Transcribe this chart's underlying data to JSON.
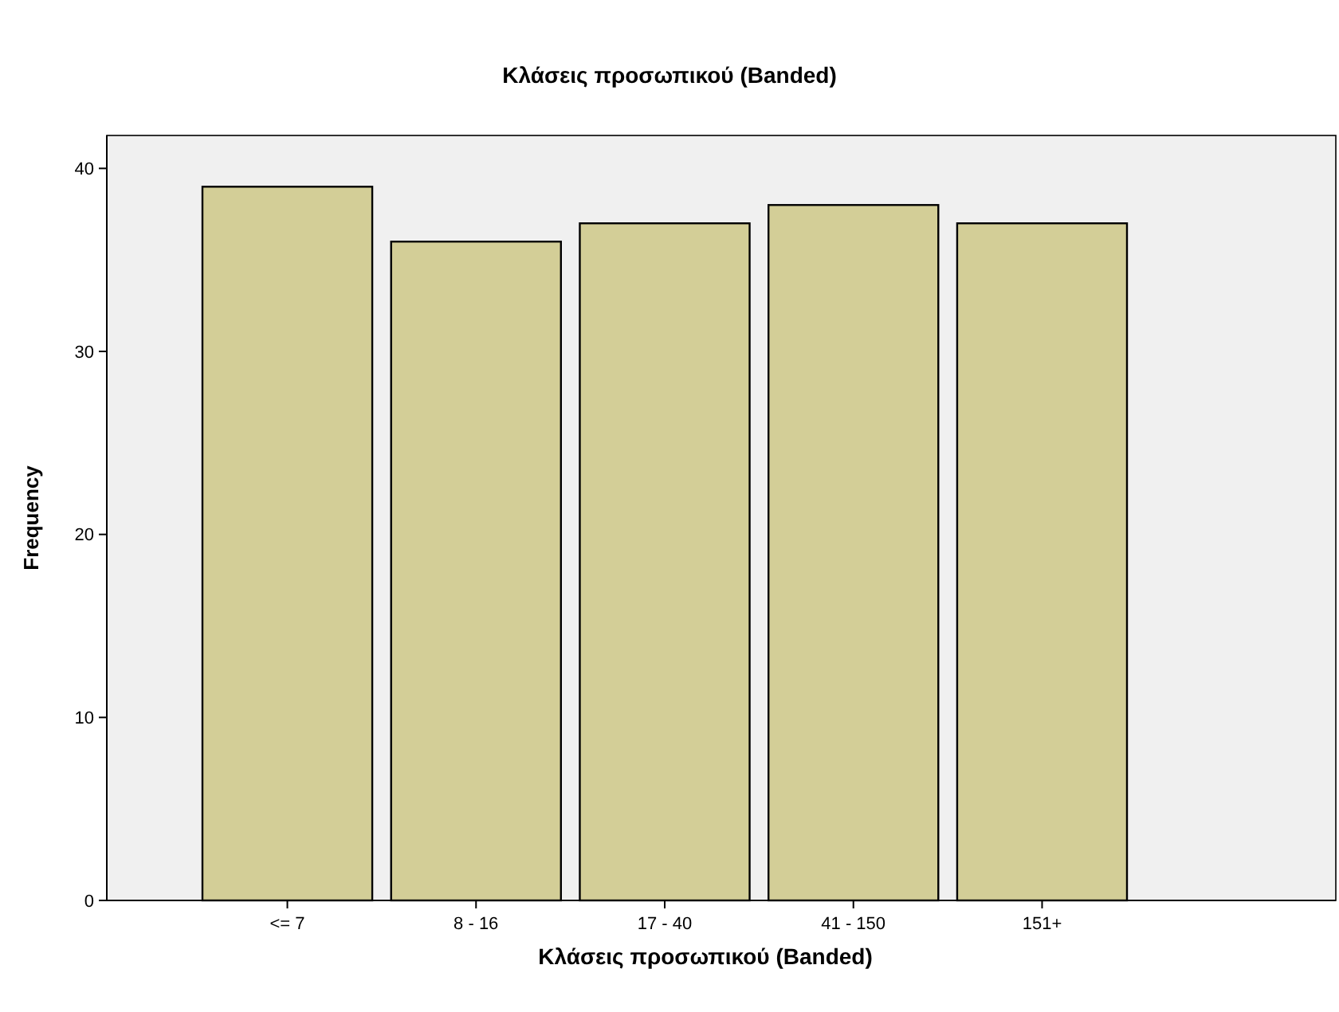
{
  "chart_data": {
    "type": "bar",
    "title": "Κλάσεις προσωπικού (Banded)",
    "xlabel": "Κλάσεις προσωπικού (Banded)",
    "ylabel": "Frequency",
    "categories": [
      "<= 7",
      "8 - 16",
      "17 - 40",
      "41 - 150",
      "151+"
    ],
    "values": [
      39,
      36,
      37,
      38,
      37
    ],
    "color": "#d3ce97",
    "ylim": [
      0,
      41.8
    ],
    "yticks": [
      0,
      10,
      20,
      30,
      40
    ],
    "grid": false
  }
}
